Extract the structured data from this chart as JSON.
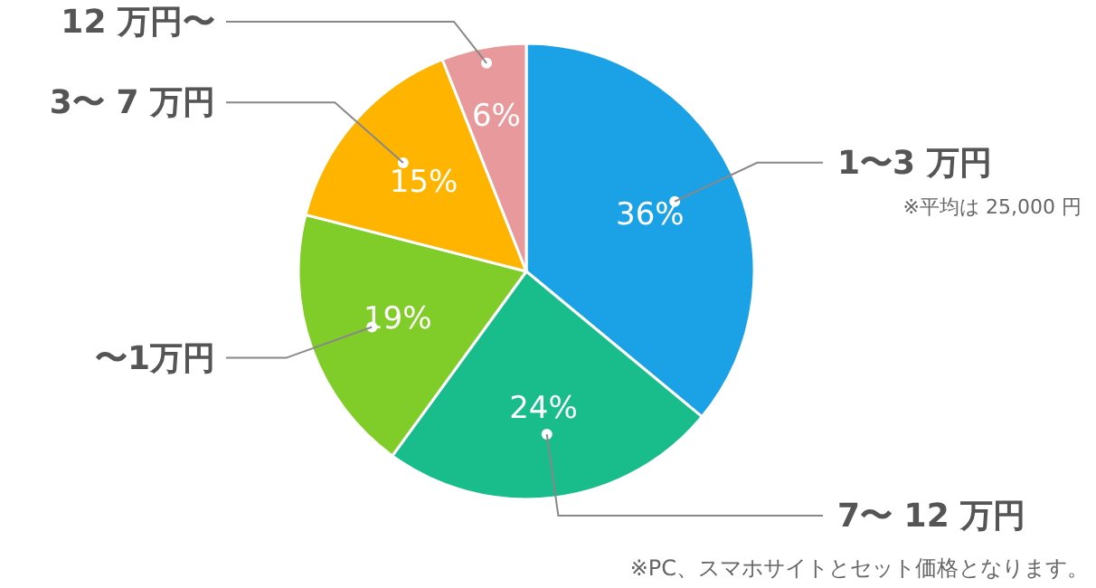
{
  "chart_data": {
    "type": "pie",
    "categories": [
      "1〜3 万円",
      "7〜 12 万円",
      "〜1万円",
      "3〜 7 万円",
      "12 万円〜"
    ],
    "values": [
      36,
      24,
      19,
      15,
      6
    ],
    "colors": [
      "#1aa1e6",
      "#19bd8c",
      "#80cc28",
      "#ffb400",
      "#e8999b"
    ],
    "value_labels": [
      "36%",
      "24%",
      "19%",
      "15%",
      "6%"
    ],
    "annotations": [
      "※平均は 25,000 円",
      "※PC、スマホサイトとセット価格となります。"
    ]
  }
}
